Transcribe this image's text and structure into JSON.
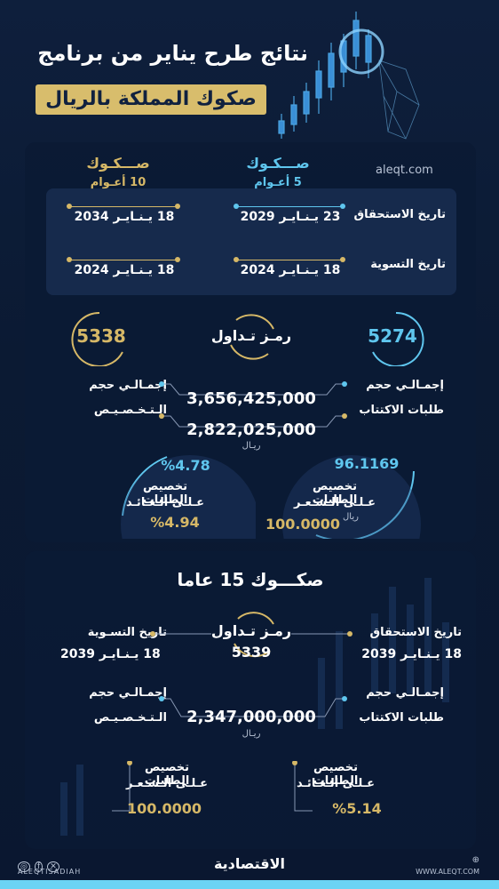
{
  "header": {
    "title_line1": "نتائج طرح يناير من برنامج",
    "title_line2": "صكوك المملكة بالريال"
  },
  "top": {
    "site": "aleqt.com",
    "col5_title": "صـــكـوك",
    "col5_sub": "5 أعـوام",
    "col10_title": "صـــكـوك",
    "col10_sub": "10 أعـوام",
    "maturity_label": "تاريخ الاستحقاق",
    "settlement_label": "تاريخ التسوية",
    "maturity_5": "23 يـنـايـر 2029",
    "maturity_10": "18 يـنـايـر 2034",
    "settlement_5": "18 يـنـايـر 2024",
    "settlement_10": "18 يـنـايـر 2024",
    "code_label": "رمـز تـداول",
    "code_5": "5274",
    "code_10": "5338",
    "subscr_label_1": "إجمـالـي حجم",
    "subscr_label_2": "طلبات الاكتتاب",
    "alloc_label_1": "إجمـالـي حجم",
    "alloc_label_2": "الـتـخـصـيـص",
    "subscr_value": "3,656,425,000",
    "alloc_value": "2,822,025,000",
    "currency": "ريـال",
    "price_label_1": "تخصيص الطلبات",
    "price_label_2": "عـلـى الـسـعـر",
    "price_currency": "ريال",
    "price_high": "96.1169",
    "price_low": "100.0000",
    "yield_label_1": "تخصيص الطلبات",
    "yield_label_2": "عـلـى الـعـائـد",
    "yield_high": "%4.78",
    "yield_low": "%4.94"
  },
  "bottom": {
    "title": "صكـــوك 15 عاما",
    "maturity_label": "تاريخ الاستحقاق",
    "maturity_value": "18 يـنـايـر 2039",
    "settlement_label": "تاريخ التسـوية",
    "settlement_value": "18 يـنـايـر 2039",
    "code_label": "رمـز تـداول",
    "code_value": "5339",
    "subscr_label_1": "إجمـالـي حجم",
    "subscr_label_2": "طلبات الاكتتاب",
    "alloc_label_1": "إجمـالـي حجم",
    "alloc_label_2": "الـتـخـصـيـص",
    "value": "2,347,000,000",
    "currency": "ريـال",
    "yield_label_1": "تخصيص الطلبات",
    "yield_label_2": "عـلـى الـعـائـد",
    "yield_value": "%5.14",
    "price_label_1": "تخصيص الطلبات",
    "price_label_2": "عـلـى الـسـعـر",
    "price_value": "100.0000"
  },
  "footer": {
    "handle": "ALEQTISADIAH",
    "logo": "الاقتصادية",
    "url": "WWW.ALEQT.COM"
  },
  "colors": {
    "gold": "#d6b867",
    "cyan": "#5fc6ee",
    "navy": "#0b1a33"
  }
}
